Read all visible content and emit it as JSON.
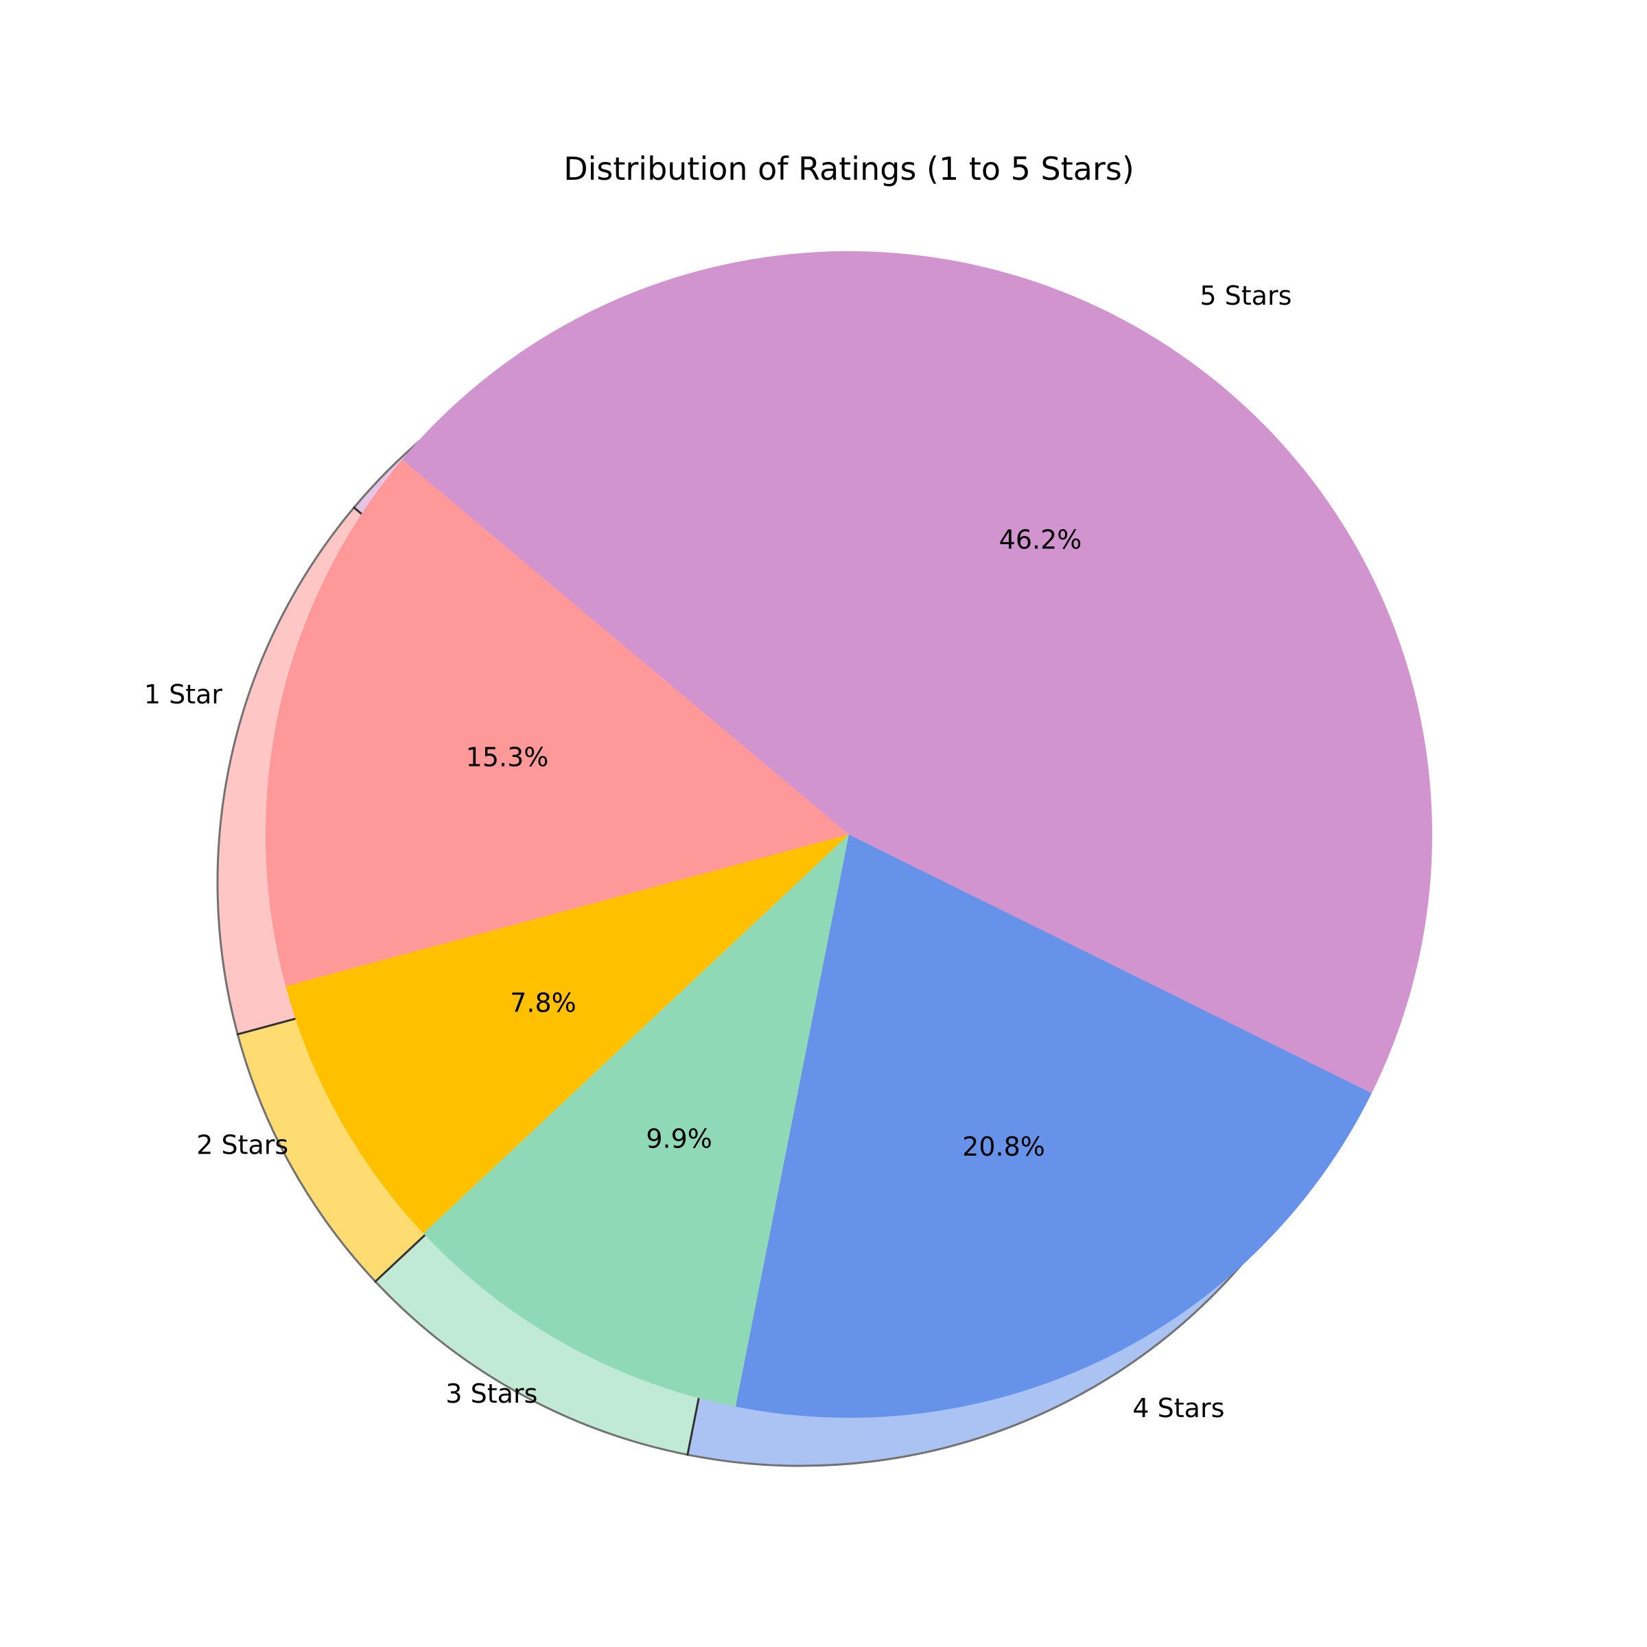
{
  "chart_data": {
    "type": "pie",
    "title": "Distribution of Ratings (1 to 5 Stars)",
    "labels": [
      "1 Star",
      "2 Stars",
      "3 Stars",
      "4 Stars",
      "5 Stars"
    ],
    "values": [
      15.3,
      7.8,
      9.9,
      20.8,
      46.2
    ],
    "value_labels": [
      "15.3%",
      "7.8%",
      "9.9%",
      "20.8%",
      "46.2%"
    ],
    "colors": [
      "#ff9999",
      "#ffc000",
      "#90d9b6",
      "#6693e9",
      "#d194ce"
    ],
    "shadow": true,
    "start_angle_deg": 140,
    "direction": "counterclockwise"
  }
}
